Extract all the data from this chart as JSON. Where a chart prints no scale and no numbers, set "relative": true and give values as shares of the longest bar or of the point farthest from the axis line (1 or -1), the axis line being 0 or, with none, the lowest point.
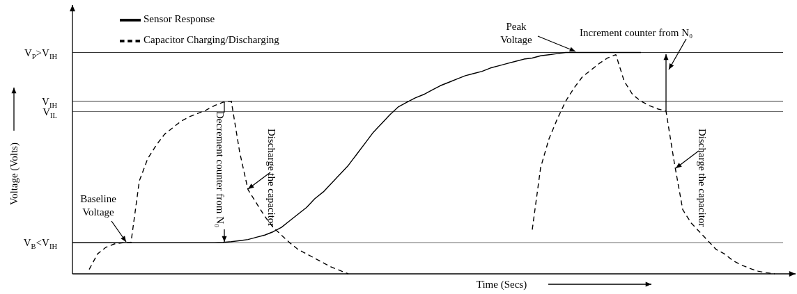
{
  "chart_data": {
    "type": "line",
    "relative": true,
    "xlabel": "Time (Secs)",
    "legend": "top left",
    "marker": "none",
    "categories": [
      null,
      null,
      null,
      null,
      null,
      null,
      null,
      null,
      null,
      null,
      null,
      null,
      null,
      null,
      null,
      null,
      null,
      null,
      null,
      null,
      null,
      null,
      null,
      null,
      null,
      null,
      null,
      null,
      null,
      null,
      null,
      null,
      null,
      null,
      null,
      null,
      null,
      null,
      null,
      null,
      null,
      null,
      null,
      null,
      null,
      null,
      null,
      null,
      null,
      null,
      null,
      null,
      null,
      null,
      null,
      null,
      null,
      null,
      null,
      null,
      null,
      null,
      null,
      null,
      null,
      null,
      null,
      null,
      null,
      null,
      null,
      null,
      null,
      null,
      null,
      null,
      null,
      null,
      null,
      null,
      null,
      null,
      null,
      null,
      null,
      null
    ],
    "series": [
      {
        "name": "Sensor Response",
        "color": "#000000",
        "line_style": "solid",
        "values": [
          0.141,
          0.141,
          0.141,
          0.141,
          0.141,
          0.141,
          0.141,
          0.141,
          0.141,
          0.141,
          0.141,
          0.141,
          0.141,
          0.141,
          0.141,
          0.141,
          0.141,
          0.141,
          0.142,
          0.145,
          0.15,
          0.155,
          0.165,
          0.175,
          0.19,
          0.21,
          0.24,
          0.27,
          0.3,
          0.34,
          0.37,
          0.41,
          0.45,
          0.49,
          0.54,
          0.59,
          0.64,
          0.68,
          0.72,
          0.755,
          0.775,
          0.795,
          0.81,
          0.83,
          0.85,
          0.865,
          0.88,
          0.895,
          0.905,
          0.915,
          0.93,
          0.94,
          0.95,
          0.96,
          0.97,
          0.975,
          0.985,
          0.99,
          0.995,
          1,
          1,
          1,
          1,
          1,
          1,
          1,
          1,
          1,
          1,
          null,
          null,
          null,
          null,
          null,
          null,
          null,
          null,
          null,
          null,
          null,
          null,
          null,
          null,
          null,
          null,
          null
        ]
      },
      {
        "name": "Capacitor Charging/Discharging",
        "color": "#000000",
        "line_style": "dashed",
        "values": [
          null,
          null,
          0.02,
          0.09,
          0.12,
          0.135,
          0.14,
          0.141,
          0.42,
          0.52,
          0.58,
          0.63,
          0.66,
          0.69,
          0.71,
          0.725,
          0.74,
          0.76,
          0.775,
          0.78,
          0.55,
          0.38,
          0.32,
          0.26,
          0.21,
          0.175,
          0.14,
          0.11,
          0.09,
          0.07,
          0.05,
          0.03,
          0.015,
          0,
          null,
          null,
          null,
          null,
          null,
          null,
          null,
          null,
          null,
          null,
          null,
          null,
          null,
          null,
          null,
          null,
          null,
          null,
          null,
          null,
          null,
          0.2,
          0.48,
          0.61,
          0.7,
          0.78,
          0.84,
          0.89,
          0.92,
          0.95,
          0.975,
          0.99,
          0.87,
          0.81,
          0.78,
          0.76,
          0.745,
          0.735,
          0.5,
          0.29,
          0.23,
          0.19,
          0.15,
          0.11,
          0.09,
          0.06,
          0.04,
          0.025,
          0.012,
          0.005,
          0,
          null
        ]
      }
    ],
    "ref_lines": [
      {
        "axis": "y",
        "value": 1,
        "label": "V$_{P}$>V$_{IH}$",
        "color": "#333333"
      },
      {
        "axis": "y",
        "value": 0.78,
        "label": "V$_{IH}$",
        "color": "#333333"
      },
      {
        "axis": "y",
        "value": 0.733,
        "label": "V$_{IL}$",
        "color": "#666666"
      },
      {
        "axis": "y",
        "value": 0.141,
        "label": "V$_{B}$<V$_{IH}$",
        "color": "#666666"
      }
    ],
    "annotations": [
      "Baseline Voltage",
      "Decrement counter from N₀",
      "Discharge the capacitor",
      "Peak Voltage",
      "Increment counter from N₀",
      "Discharge the capacitor",
      "Voltage (Volts)"
    ]
  }
}
